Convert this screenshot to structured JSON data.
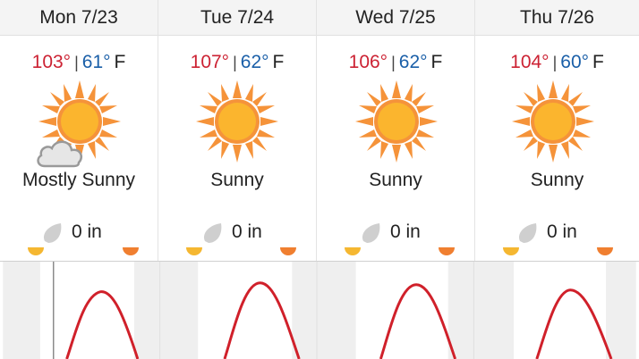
{
  "days": [
    {
      "label": "Mon 7/23",
      "high": "103°",
      "low": "61°",
      "unit": "F",
      "condition": "Mostly Sunny",
      "icon": "sun-cloud-icon",
      "precip": "0 in"
    },
    {
      "label": "Tue 7/24",
      "high": "107°",
      "low": "62°",
      "unit": "F",
      "condition": "Sunny",
      "icon": "sun-icon",
      "precip": "0 in"
    },
    {
      "label": "Wed 7/25",
      "high": "106°",
      "low": "62°",
      "unit": "F",
      "condition": "Sunny",
      "icon": "sun-icon",
      "precip": "0 in"
    },
    {
      "label": "Thu 7/26",
      "high": "104°",
      "low": "60°",
      "unit": "F",
      "condition": "Sunny",
      "icon": "sun-icon",
      "precip": "0 in"
    }
  ],
  "separator": "|",
  "colors": {
    "high": "#cc2233",
    "low": "#1a5fa8",
    "sun_rays": "#f5933a",
    "sun_core": "#fbb52e",
    "sunrise": "#f5b731",
    "sunset": "#f07f30",
    "temp_curve": "#d0202a",
    "night_band": "#efefef"
  }
}
